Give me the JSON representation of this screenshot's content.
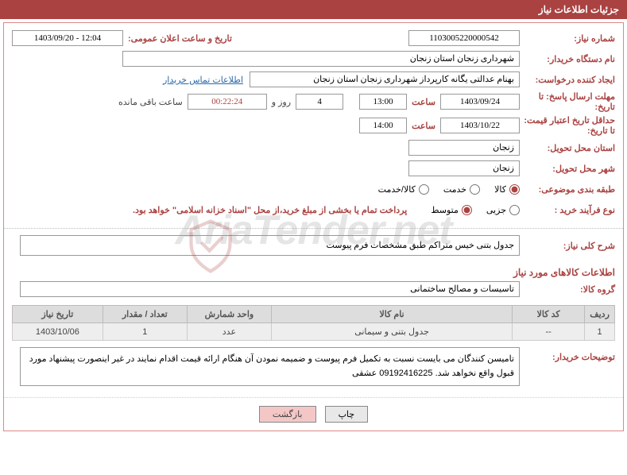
{
  "header": {
    "title": "جزئیات اطلاعات نیاز"
  },
  "fields": {
    "need_no_label": "شماره نیاز:",
    "need_no": "1103005220000542",
    "announce_label": "تاریخ و ساعت اعلان عمومی:",
    "announce_value": "12:04 - 1403/09/20",
    "buyer_org_label": "نام دستگاه خریدار:",
    "buyer_org": "شهرداری زنجان استان زنجان",
    "requester_label": "ایجاد کننده درخواست:",
    "requester": "بهنام عدالتی یگانه کارپرداز شهرداری زنجان استان زنجان",
    "contact_link": "اطلاعات تماس خریدار",
    "deadline_label": "مهلت ارسال پاسخ: تا تاریخ:",
    "deadline_date": "1403/09/24",
    "hour_label": "ساعت",
    "deadline_time": "13:00",
    "days_value": "4",
    "days_label": "روز و",
    "counter": "00:22:24",
    "remaining_label": "ساعت باقی مانده",
    "validity_label": "حداقل تاریخ اعتبار قیمت: تا تاریخ:",
    "validity_date": "1403/10/22",
    "validity_time": "14:00",
    "delivery_province_label": "استان محل تحویل:",
    "delivery_province": "زنجان",
    "delivery_city_label": "شهر محل تحویل:",
    "delivery_city": "زنجان",
    "category_label": "طبقه بندی موضوعی:",
    "process_label": "نوع فرآیند خرید :",
    "payment_note": "پرداخت تمام یا بخشی از مبلغ خرید،از محل \"اسناد خزانه اسلامی\" خواهد بود."
  },
  "radios": {
    "cat": [
      {
        "label": "کالا",
        "checked": true
      },
      {
        "label": "خدمت",
        "checked": false
      },
      {
        "label": "کالا/خدمت",
        "checked": false
      }
    ],
    "proc": [
      {
        "label": "جزیی",
        "checked": false
      },
      {
        "label": "متوسط",
        "checked": true
      }
    ]
  },
  "summary": {
    "label": "شرح کلی نیاز:",
    "text": "جدول بتنی خیس متراکم طبق مشخصات فرم پیوست"
  },
  "items_section": {
    "title": "اطلاعات کالاهای مورد نیاز"
  },
  "group": {
    "label": "گروه کالا:",
    "value": "تاسیسات و مصالح ساختمانی"
  },
  "table": {
    "headers": [
      "ردیف",
      "کد کالا",
      "نام کالا",
      "واحد شمارش",
      "تعداد / مقدار",
      "تاریخ نیاز"
    ],
    "rows": [
      [
        "1",
        "--",
        "جدول بتنی و سیمانی",
        "عدد",
        "1",
        "1403/10/06"
      ]
    ]
  },
  "description": {
    "label": "توضیحات خریدار:",
    "text": "تامیسن کنندگان می بایست نسبت به تکمیل فرم پیوست و ضمیمه نمودن آن هنگام ارائه قیمت اقدام نمایند در غیر اینصورت پیشنهاد مورد قبول واقع نخواهد شد. 09192416225 عشقی"
  },
  "buttons": {
    "print": "چاپ",
    "back": "بازگشت"
  },
  "watermark": {
    "text": "AriaTender.net"
  },
  "colors": {
    "brand": "#a94241",
    "header_bg": "#a94241",
    "link": "#2a6aa8",
    "th_bg": "#dddddd",
    "td_bg": "#eeeeee"
  }
}
